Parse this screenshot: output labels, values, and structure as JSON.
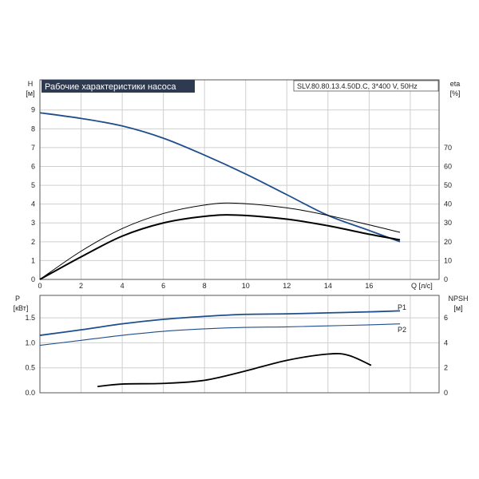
{
  "chart_data": [
    {
      "type": "line",
      "title": "Рабочие характеристики насоса",
      "model": "SLV.80.80.13.4.50D.C, 3*400 V, 50Hz",
      "xlabel": "Q [л/с]",
      "ylabel_main": "H",
      "ylabel_unit": "[м]",
      "y2label_main": "eta",
      "y2label_unit": "[%]",
      "xlim": [
        0,
        19.4
      ],
      "ylim": [
        0,
        10.6
      ],
      "y2lim": [
        0,
        106
      ],
      "x_ticks": [
        "0",
        "2",
        "4",
        "6",
        "8",
        "10",
        "12",
        "14",
        "16"
      ],
      "y_ticks": [
        "0",
        "1",
        "2",
        "3",
        "4",
        "5",
        "6",
        "7",
        "8",
        "9"
      ],
      "y2_ticks": [
        "0",
        "10",
        "20",
        "30",
        "40",
        "50",
        "60",
        "70"
      ],
      "grid": true,
      "series": [
        {
          "axis": "left",
          "color": "#1f4e8c",
          "x": [
            0,
            2,
            4,
            6,
            8,
            10,
            12,
            14,
            16,
            17.5
          ],
          "values": [
            8.85,
            8.55,
            8.15,
            7.5,
            6.6,
            5.6,
            4.5,
            3.4,
            2.6,
            2.0
          ]
        },
        {
          "axis": "right",
          "color": "#000000",
          "x": [
            0,
            2,
            4,
            6,
            8,
            9.5,
            12,
            14,
            16,
            17.5
          ],
          "values": [
            0,
            15,
            27,
            35,
            39.5,
            40.5,
            38,
            34,
            29,
            25
          ]
        },
        {
          "axis": "right",
          "color": "#000000",
          "x": [
            0,
            2,
            4,
            6,
            8,
            9.5,
            12,
            14,
            16,
            17.5
          ],
          "values": [
            0,
            12,
            23,
            30,
            33.5,
            34.2,
            32,
            28.5,
            24,
            21
          ]
        }
      ]
    },
    {
      "type": "line",
      "ylabel_main": "P",
      "ylabel_unit": "[кВт]",
      "y2label_main": "NPSH",
      "y2label_unit": "[м]",
      "xlim": [
        0,
        19.4
      ],
      "ylim": [
        0,
        1.95
      ],
      "y2lim": [
        0,
        7.8
      ],
      "y_ticks": [
        "0.0",
        "0.5",
        "1.0",
        "1.5"
      ],
      "y2_ticks": [
        "0",
        "2",
        "4",
        "6"
      ],
      "grid": true,
      "series": [
        {
          "name": "P1",
          "axis": "left",
          "color": "#1f4e8c",
          "x": [
            0,
            2,
            4,
            6,
            8,
            10,
            12,
            14,
            16,
            17.5
          ],
          "values": [
            1.15,
            1.26,
            1.38,
            1.47,
            1.53,
            1.57,
            1.58,
            1.6,
            1.62,
            1.64
          ]
        },
        {
          "name": "P2",
          "axis": "left",
          "color": "#1f4e8c",
          "x": [
            0,
            2,
            4,
            6,
            8,
            10,
            12,
            14,
            16,
            17.5
          ],
          "values": [
            0.95,
            1.05,
            1.15,
            1.23,
            1.28,
            1.31,
            1.32,
            1.34,
            1.36,
            1.38
          ]
        },
        {
          "axis": "right",
          "color": "#000000",
          "x": [
            2.8,
            4,
            6,
            8,
            10,
            12,
            14,
            15,
            16.1
          ],
          "values": [
            0.5,
            0.7,
            0.75,
            1.0,
            1.75,
            2.6,
            3.1,
            3.0,
            2.2
          ]
        }
      ]
    }
  ]
}
